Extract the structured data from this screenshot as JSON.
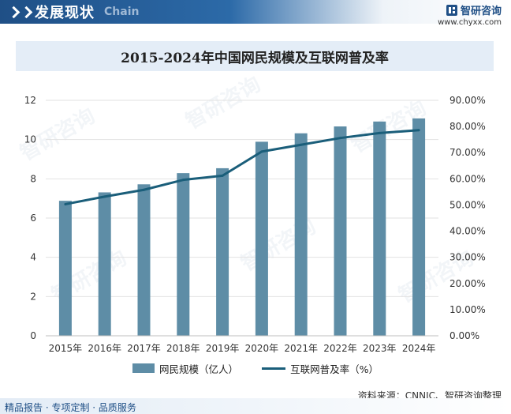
{
  "header": {
    "section_title": "发展现状",
    "section_subtitle": "Chain",
    "brand_name": "智研咨询",
    "brand_url": "www.chyxx.com"
  },
  "watermark_text": "智研咨询",
  "chart_data": {
    "type": "bar+line",
    "title": "2015-2024年中国网民规模及互联网普及率",
    "categories": [
      "2015年",
      "2016年",
      "2017年",
      "2018年",
      "2019年",
      "2020年",
      "2021年",
      "2022年",
      "2023年",
      "2024年"
    ],
    "series": [
      {
        "name": "网民规模（亿人）",
        "type": "bar",
        "axis": "left",
        "color": "#5e8da6",
        "values": [
          6.88,
          7.31,
          7.72,
          8.29,
          8.54,
          9.89,
          10.32,
          10.67,
          10.92,
          11.08
        ]
      },
      {
        "name": "互联网普及率（%）",
        "type": "line",
        "axis": "right",
        "color": "#1a5e7a",
        "values": [
          50.3,
          53.2,
          55.8,
          59.6,
          61.2,
          70.4,
          73.0,
          75.6,
          77.5,
          78.6
        ]
      }
    ],
    "y_left": {
      "min": 0,
      "max": 12,
      "ticks": [
        "0",
        "2",
        "4",
        "6",
        "8",
        "10",
        "12"
      ]
    },
    "y_right": {
      "min": 0,
      "max": 90,
      "ticks": [
        "0.00%",
        "10.00%",
        "20.00%",
        "30.00%",
        "40.00%",
        "50.00%",
        "60.00%",
        "70.00%",
        "80.00%",
        "90.00%"
      ]
    },
    "grid": true,
    "legend_position": "bottom"
  },
  "legend": {
    "bar_label": "网民规模（亿人）",
    "line_label": "互联网普及率（%）"
  },
  "source": "资料来源：CNNIC、智研咨询整理",
  "footer": "精品报告 · 专项定制 · 品质服务"
}
